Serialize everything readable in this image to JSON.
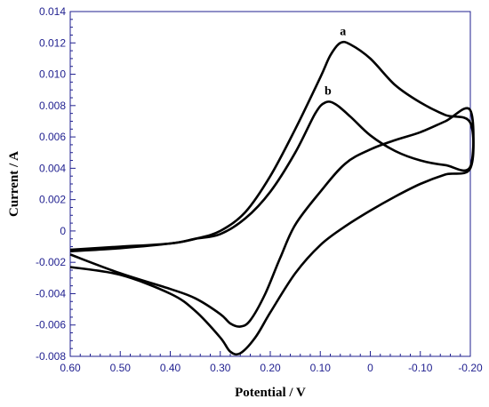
{
  "chart_data": {
    "type": "line",
    "xlabel": "Potential / V",
    "ylabel": "Current / A",
    "xlim": [
      0.6,
      -0.2
    ],
    "ylim": [
      -0.008,
      0.014
    ],
    "x_reversed": true,
    "grid": false,
    "x_ticks": [
      "0.60",
      "0.50",
      "0.40",
      "0.30",
      "0.20",
      "0.10",
      "0",
      "-0.10",
      "-0.20"
    ],
    "y_ticks": [
      "-0.008",
      "-0.006",
      "-0.004",
      "-0.002",
      "0",
      "0.002",
      "0.004",
      "0.006",
      "0.008",
      "0.010",
      "0.012",
      "0.014"
    ],
    "series": [
      {
        "name": "a",
        "color": "#000000",
        "points": [
          [
            0.6,
            -0.0013
          ],
          [
            0.5,
            -0.0011
          ],
          [
            0.4,
            -0.0008
          ],
          [
            0.35,
            -0.0005
          ],
          [
            0.3,
            0.0
          ],
          [
            0.25,
            0.0012
          ],
          [
            0.2,
            0.0035
          ],
          [
            0.15,
            0.0065
          ],
          [
            0.1,
            0.0098
          ],
          [
            0.08,
            0.0112
          ],
          [
            0.06,
            0.012
          ],
          [
            0.04,
            0.0119
          ],
          [
            0.0,
            0.011
          ],
          [
            -0.05,
            0.0093
          ],
          [
            -0.1,
            0.0082
          ],
          [
            -0.15,
            0.0074
          ],
          [
            -0.2,
            0.0069
          ],
          [
            -0.2,
            0.004
          ],
          [
            -0.15,
            0.0036
          ],
          [
            -0.1,
            0.003
          ],
          [
            -0.05,
            0.0022
          ],
          [
            0.0,
            0.0013
          ],
          [
            0.05,
            0.0003
          ],
          [
            0.1,
            -0.0009
          ],
          [
            0.15,
            -0.0027
          ],
          [
            0.2,
            -0.0052
          ],
          [
            0.23,
            -0.0068
          ],
          [
            0.26,
            -0.0078
          ],
          [
            0.28,
            -0.0077
          ],
          [
            0.3,
            -0.0068
          ],
          [
            0.35,
            -0.0051
          ],
          [
            0.4,
            -0.004
          ],
          [
            0.5,
            -0.0028
          ],
          [
            0.6,
            -0.0023
          ]
        ]
      },
      {
        "name": "b",
        "color": "#000000",
        "points": [
          [
            0.6,
            -0.0012
          ],
          [
            0.5,
            -0.001
          ],
          [
            0.4,
            -0.0008
          ],
          [
            0.35,
            -0.0005
          ],
          [
            0.3,
            -0.0002
          ],
          [
            0.25,
            0.0008
          ],
          [
            0.2,
            0.0025
          ],
          [
            0.15,
            0.005
          ],
          [
            0.11,
            0.0075
          ],
          [
            0.09,
            0.0082
          ],
          [
            0.07,
            0.0081
          ],
          [
            0.04,
            0.0073
          ],
          [
            0.0,
            0.0061
          ],
          [
            -0.05,
            0.0051
          ],
          [
            -0.1,
            0.0045
          ],
          [
            -0.15,
            0.0042
          ],
          [
            -0.2,
            0.0041
          ],
          [
            -0.2,
            0.0077
          ],
          [
            -0.15,
            0.007
          ],
          [
            -0.1,
            0.0063
          ],
          [
            -0.05,
            0.0058
          ],
          [
            0.0,
            0.0052
          ],
          [
            0.05,
            0.0043
          ],
          [
            0.1,
            0.0025
          ],
          [
            0.15,
            0.0004
          ],
          [
            0.18,
            -0.0017
          ],
          [
            0.21,
            -0.004
          ],
          [
            0.24,
            -0.0057
          ],
          [
            0.26,
            -0.0061
          ],
          [
            0.28,
            -0.0059
          ],
          [
            0.3,
            -0.0053
          ],
          [
            0.35,
            -0.0043
          ],
          [
            0.4,
            -0.0037
          ],
          [
            0.5,
            -0.0027
          ],
          [
            0.6,
            -0.0015
          ]
        ]
      }
    ],
    "annotations": [
      "a",
      "b"
    ]
  }
}
